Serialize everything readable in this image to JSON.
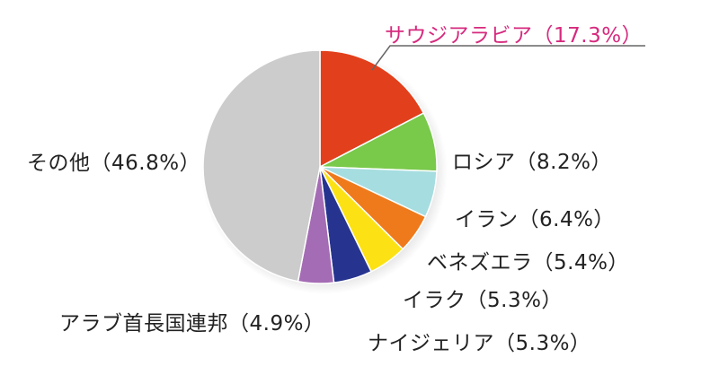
{
  "chart_data": {
    "type": "pie",
    "title": "",
    "slices": [
      {
        "name": "サウジアラビア",
        "value": 17.3,
        "label": "サウジアラビア（17.3%）",
        "color": "#e2401c",
        "label_color": "#d62a7e"
      },
      {
        "name": "ロシア",
        "value": 8.2,
        "label": "ロシア（8.2%）",
        "color": "#79c94b"
      },
      {
        "name": "イラン",
        "value": 6.4,
        "label": "イラン（6.4%）",
        "color": "#a6dde0"
      },
      {
        "name": "ベネズエラ",
        "value": 5.4,
        "label": "ベネズエラ（5.4%）",
        "color": "#ef7a1c"
      },
      {
        "name": "イラク",
        "value": 5.3,
        "label": "イラク（5.3%）",
        "color": "#fce214"
      },
      {
        "name": "ナイジェリア",
        "value": 5.3,
        "label": "ナイジェリア（5.3%）",
        "color": "#27348f"
      },
      {
        "name": "アラブ首長国連邦",
        "value": 4.9,
        "label": "アラブ首長国連邦（4.9%）",
        "color": "#a46cb4"
      },
      {
        "name": "その他",
        "value": 46.8,
        "label": "その他（46.8%）",
        "color": "#cccccc"
      }
    ]
  }
}
